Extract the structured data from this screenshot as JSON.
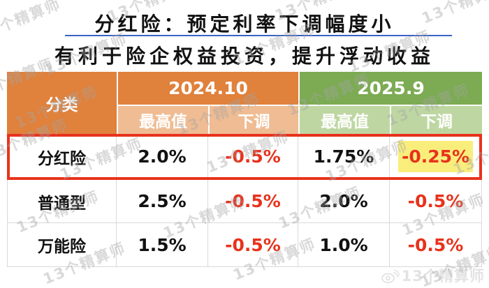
{
  "title": {
    "line1": "分红险：预定利率下调幅度小",
    "line2": "有利于险企权益投资，提升浮动收益"
  },
  "table": {
    "category_header": "分类",
    "period_headers": [
      "2024.10",
      "2025.9"
    ],
    "sub_headers": [
      "最高值",
      "下调",
      "最高值",
      "下调"
    ],
    "rows": [
      {
        "category": "分红险",
        "values": [
          "2.0%",
          "-0.5%",
          "1.75%",
          "-0.25%"
        ],
        "highlighted": true
      },
      {
        "category": "普通型",
        "values": [
          "2.5%",
          "-0.5%",
          "2.0%",
          "-0.5%"
        ],
        "highlighted": false
      },
      {
        "category": "万能险",
        "values": [
          "1.5%",
          "-0.5%",
          "1.0%",
          "-0.5%"
        ],
        "highlighted": false
      }
    ]
  },
  "watermark": {
    "text": "13个精算师"
  },
  "footer": {
    "brand": "13个精算师"
  },
  "colors": {
    "header_orange": "#e0813c",
    "subheader_orange": "#efbc93",
    "header_green": "#7cab53",
    "subheader_green": "#bed7a2",
    "negative_red": "#e8321c",
    "highlight_yellow": "#f9ee7c",
    "title_rule_blue": "#3a62c4"
  }
}
